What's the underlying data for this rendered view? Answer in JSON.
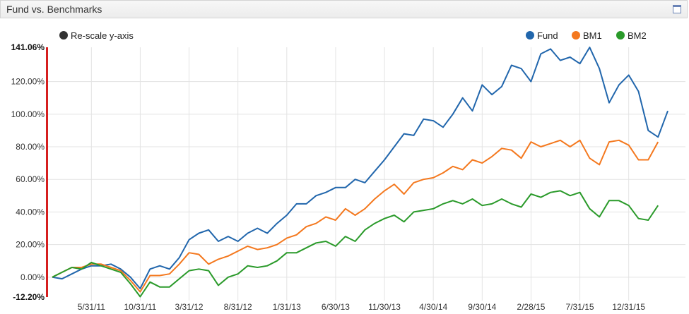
{
  "header": {
    "title": "Fund vs. Benchmarks"
  },
  "rescale_label": "Re-scale y-axis",
  "colors": {
    "Fund": "#2166ac",
    "BM1": "#f4781e",
    "BM2": "#2a9a2a",
    "axis_bar": "#d61f1f",
    "grid": "#e3e3e3"
  },
  "chart_data": {
    "type": "line",
    "title": "",
    "xlabel": "",
    "ylabel": "",
    "ylim": [
      -12.2,
      141.06
    ],
    "y_max_label": "141.06%",
    "y_min_label": "-12.20%",
    "y_ticks": [
      0,
      20,
      40,
      60,
      80,
      100,
      120
    ],
    "y_tick_labels": [
      "0.00%",
      "20.00%",
      "40.00%",
      "60.00%",
      "80.00%",
      "100.00%",
      "120.00%"
    ],
    "x_tick_labels": [
      "5/31/11",
      "10/31/11",
      "3/31/12",
      "8/31/12",
      "1/31/13",
      "6/30/13",
      "11/30/13",
      "4/30/14",
      "9/30/14",
      "2/28/15",
      "7/31/15",
      "12/31/15"
    ],
    "x_tick_index": [
      4,
      9,
      14,
      19,
      24,
      29,
      34,
      39,
      44,
      49,
      54,
      59
    ],
    "x_start": "12/31/10",
    "legend_position": "top-right",
    "grid": true,
    "series": [
      {
        "name": "Fund",
        "values": [
          0,
          -1,
          2,
          5,
          7,
          7,
          8,
          5,
          0,
          -7,
          5,
          7,
          5,
          12,
          23,
          27,
          29,
          22,
          25,
          22,
          27,
          30,
          27,
          33,
          38,
          45,
          45,
          50,
          52,
          55,
          55,
          60,
          58,
          65,
          72,
          80,
          88,
          87,
          97,
          96,
          92,
          100,
          110,
          102,
          118,
          112,
          117,
          130,
          128,
          120,
          137,
          140,
          133,
          135,
          131,
          141,
          128,
          107,
          118,
          124,
          114,
          90,
          86,
          102
        ]
      },
      {
        "name": "BM1",
        "values": [
          0,
          3,
          6,
          6,
          8,
          8,
          6,
          4,
          -2,
          -9,
          1,
          1,
          2,
          8,
          15,
          14,
          8,
          11,
          13,
          16,
          19,
          17,
          18,
          20,
          24,
          26,
          31,
          33,
          37,
          35,
          42,
          38,
          42,
          48,
          53,
          57,
          51,
          58,
          60,
          61,
          64,
          68,
          66,
          72,
          70,
          74,
          79,
          78,
          73,
          83,
          80,
          82,
          84,
          80,
          84,
          73,
          69,
          83,
          84,
          81,
          72,
          72,
          83
        ]
      },
      {
        "name": "BM2",
        "values": [
          0,
          3,
          6,
          5,
          9,
          7,
          5,
          3,
          -4,
          -12,
          -3,
          -6,
          -6,
          -1,
          4,
          5,
          4,
          -5,
          0,
          2,
          7,
          6,
          7,
          10,
          15,
          15,
          18,
          21,
          22,
          19,
          25,
          22,
          29,
          33,
          36,
          38,
          34,
          40,
          41,
          42,
          45,
          47,
          45,
          48,
          44,
          45,
          48,
          45,
          43,
          51,
          49,
          52,
          53,
          50,
          52,
          42,
          37,
          47,
          47,
          44,
          36,
          35,
          44
        ]
      }
    ]
  }
}
